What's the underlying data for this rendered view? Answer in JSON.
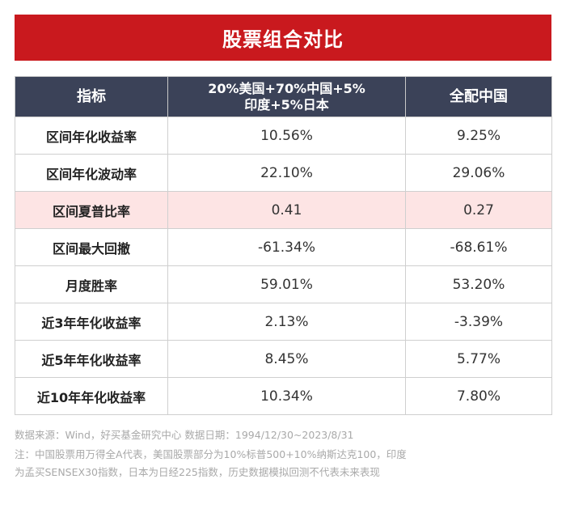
{
  "title": "股票组合对比",
  "table": {
    "headers": [
      "指标",
      "20%美国+70%中国+5%",
      "印度+5%日本",
      "全配中国"
    ],
    "rows": [
      {
        "label": "区间年化收益率",
        "a": "10.56%",
        "b": "9.25%"
      },
      {
        "label": "区间年化波动率",
        "a": "22.10%",
        "b": "29.06%"
      },
      {
        "label": "区间夏普比率",
        "a": "0.41",
        "b": "0.27"
      },
      {
        "label": "区间最大回撤",
        "a": "-61.34%",
        "b": "-68.61%"
      },
      {
        "label": "月度胜率",
        "a": "59.01%",
        "b": "53.20%"
      },
      {
        "label": "近3年年化收益率",
        "a": "2.13%",
        "b": "-3.39%"
      },
      {
        "label": "近5年年化收益率",
        "a": "8.45%",
        "b": "5.77%"
      },
      {
        "label": "近10年年化收益率",
        "a": "10.34%",
        "b": "7.80%"
      }
    ],
    "highlight_color": "#fde4e4",
    "header_color": "#3b4258"
  },
  "notes": {
    "line1": "数据来源：Wind，好买基金研究中心 数据日期：1994/12/30~2023/8/31",
    "line2": "注：中国股票用万得全A代表，美国股票部分为10%标普500+10%纳斯达克100，印度",
    "line3": "为孟买SENSEX30指数，日本为日经225指数，历史数据模拟回测不代表未来表现"
  },
  "colors": {
    "title_bar": "#c9191e"
  }
}
